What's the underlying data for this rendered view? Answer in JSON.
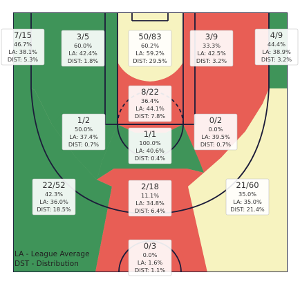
{
  "chart_data": {
    "type": "heatmap",
    "title": "",
    "colors": {
      "above": "#e85e55",
      "below": "#3f9459",
      "average": "#f7f3c0",
      "court_line": "#1c1c3a",
      "wood": "#dccda9"
    },
    "zones": [
      {
        "id": "left-corner-three",
        "made_attempts": "7/15",
        "pct": "46.7%",
        "league": "LA: 38.1%",
        "dist": "DIST: 5.3%",
        "tone": "below"
      },
      {
        "id": "left-wing-three",
        "made_attempts": "3/5",
        "pct": "60.0%",
        "league": "LA: 42.4%",
        "dist": "DIST: 1.8%",
        "tone": "below"
      },
      {
        "id": "top-key",
        "made_attempts": "50/83",
        "pct": "60.2%",
        "league": "LA: 59.2%",
        "dist": "DIST: 29.5%",
        "tone": "average"
      },
      {
        "id": "right-wing-three",
        "made_attempts": "3/9",
        "pct": "33.3%",
        "league": "LA: 42.5%",
        "dist": "DIST: 3.2%",
        "tone": "above"
      },
      {
        "id": "right-corner-three",
        "made_attempts": "4/9",
        "pct": "44.4%",
        "league": "LA: 38.9%",
        "dist": "DIST: 3.2%",
        "tone": "below"
      },
      {
        "id": "paint-upper",
        "made_attempts": "8/22",
        "pct": "36.4%",
        "league": "LA: 44.1%",
        "dist": "DIST: 7.8%",
        "tone": "above"
      },
      {
        "id": "left-elbow",
        "made_attempts": "1/2",
        "pct": "50.0%",
        "league": "LA: 37.4%",
        "dist": "DIST: 0.7%",
        "tone": "below"
      },
      {
        "id": "right-elbow",
        "made_attempts": "0/2",
        "pct": "0.0%",
        "league": "LA: 39.5%",
        "dist": "DIST: 0.7%",
        "tone": "above"
      },
      {
        "id": "paint-middle",
        "made_attempts": "1/1",
        "pct": "100.0%",
        "league": "LA: 40.6%",
        "dist": "DIST: 0.4%",
        "tone": "below"
      },
      {
        "id": "left-long-two",
        "made_attempts": "22/52",
        "pct": "42.3%",
        "league": "LA: 36.0%",
        "dist": "DIST: 18.5%",
        "tone": "below"
      },
      {
        "id": "center-long-two",
        "made_attempts": "2/18",
        "pct": "11.1%",
        "league": "LA: 34.8%",
        "dist": "DIST: 6.4%",
        "tone": "above"
      },
      {
        "id": "right-long-two",
        "made_attempts": "21/60",
        "pct": "35.0%",
        "league": "LA: 35.0%",
        "dist": "DIST: 21.4%",
        "tone": "average"
      },
      {
        "id": "backcourt",
        "made_attempts": "0/3",
        "pct": "0.0%",
        "league": "LA: 1.6%",
        "dist": "DIST: 1.1%",
        "tone": "above"
      }
    ],
    "legend": [
      {
        "text": "LA - League Average"
      },
      {
        "text": "DST - Distribution"
      }
    ],
    "legend_placement": "bottom-left"
  }
}
